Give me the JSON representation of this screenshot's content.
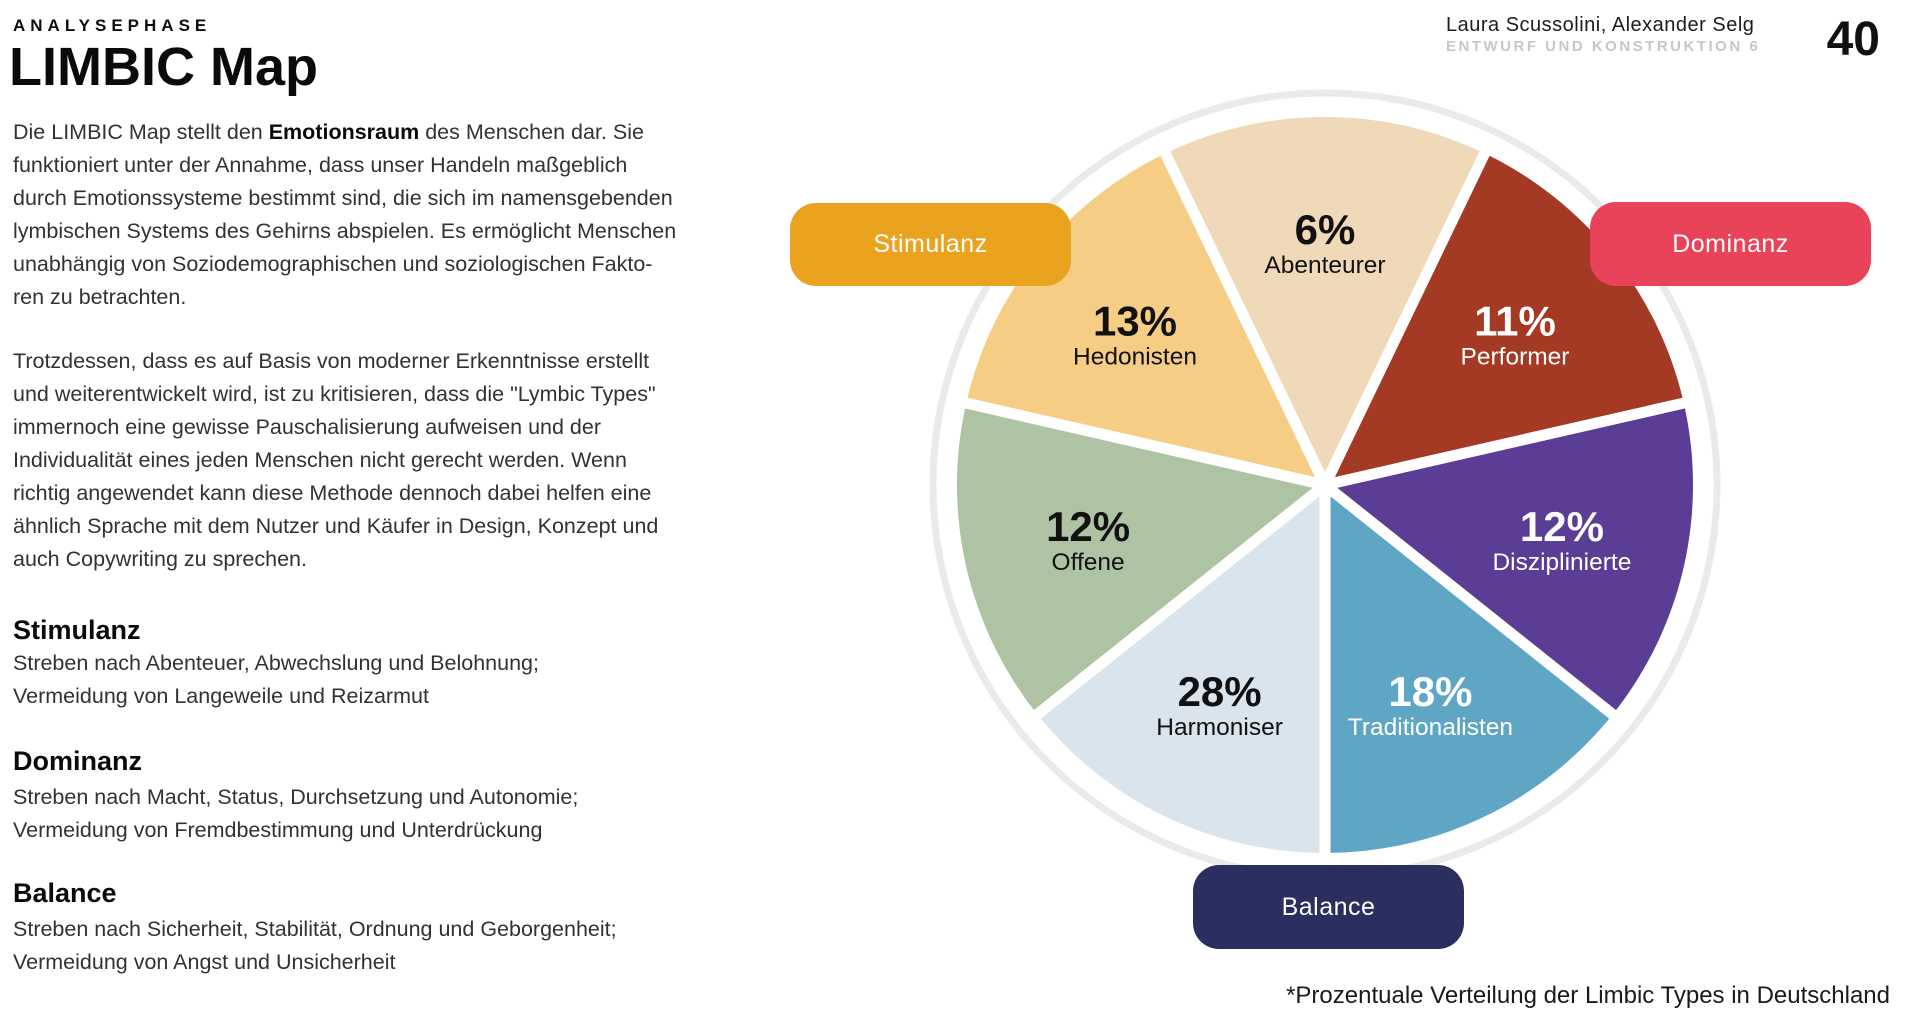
{
  "eyebrow": "ANALYSEPHASE",
  "title": "LIMBIC Map",
  "header": {
    "authors": "Laura Scussolini, Alexander Selg",
    "course": "ENTWURF UND KONSTRUKTION 6",
    "page_number": "40"
  },
  "intro": {
    "p1_line1": {
      "before": "Die LIMBIC Map stellt den ",
      "bold": "Emotionsraum",
      "after": " des Menschen dar. Sie"
    },
    "p1_rest": [
      "funktioniert unter der Annahme, dass unser Handeln maßgeblich",
      "durch Emotionssysteme bestimmt sind, die sich im namensgebenden",
      "lymbischen Systems des Gehirns abspielen. Es ermöglicht Menschen",
      "unabhängig von Soziodemographischen und soziologischen Fakto-",
      "ren zu betrachten."
    ],
    "p2_lines": [
      "Trotzdessen, dass es auf Basis von moderner Erkenntnisse erstellt",
      "und weiterentwickelt wird, ist zu kritisieren, dass die \"Lymbic Types\"",
      "immernoch eine gewisse Pauschalisierung aufweisen und der",
      "Individualität eines jeden Menschen nicht gerecht werden. Wenn",
      "richtig angewendet kann diese Methode dennoch dabei helfen eine",
      "ähnlich Sprache mit dem Nutzer und Käufer in Design, Konzept und",
      "auch Copywriting zu sprechen."
    ]
  },
  "sections": [
    {
      "heading": "Stimulanz",
      "line1": "Streben nach Abenteuer, Abwechslung und Belohnung;",
      "line2": "Vermeidung von Langeweile und Reizarmut"
    },
    {
      "heading": "Dominanz",
      "line1": "Streben nach Macht, Status, Durchsetzung und Autonomie;",
      "line2": "Vermeidung von Fremdbestimmung und Unterdrückung"
    },
    {
      "heading": "Balance",
      "line1": "Streben nach Sicherheit, Stabilität, Ordnung und Geborgenheit;",
      "line2": "Vermeidung von Angst und Unsicherheit"
    }
  ],
  "chart_data": {
    "type": "pie",
    "title": "Limbic Map — prozentuale Verteilung der Limbic Types",
    "layout": "7 equal wedges clockwise from top; percentages are data labels, not angular sizes",
    "segments": [
      {
        "label": "Abenteurer",
        "value_pct": 6,
        "color": "#EFD9B8",
        "text_color": "#111111"
      },
      {
        "label": "Performer",
        "value_pct": 11,
        "color": "#A43A24",
        "text_color": "#FFFFFF"
      },
      {
        "label": "Disziplinierte",
        "value_pct": 12,
        "color": "#5C3D96",
        "text_color": "#FFFFFF"
      },
      {
        "label": "Traditionalisten",
        "value_pct": 18,
        "color": "#5FA6C4",
        "text_color": "#FFFFFF"
      },
      {
        "label": "Harmoniser",
        "value_pct": 28,
        "color": "#D9E4EC",
        "text_color": "#111111"
      },
      {
        "label": "Offene",
        "value_pct": 12,
        "color": "#AEC3A4",
        "text_color": "#111111"
      },
      {
        "label": "Hedonisten",
        "value_pct": 13,
        "color": "#F6CD84",
        "text_color": "#111111"
      }
    ],
    "axis_buttons": [
      {
        "label": "Stimulanz",
        "color": "#EAA31E"
      },
      {
        "label": "Dominanz",
        "color": "#E9435A"
      },
      {
        "label": "Balance",
        "color": "#2A2F60"
      }
    ],
    "ring_color": "#EAEAEA",
    "footnote": "*Prozentuale Verteilung der Limbic Types in Deutschland"
  }
}
